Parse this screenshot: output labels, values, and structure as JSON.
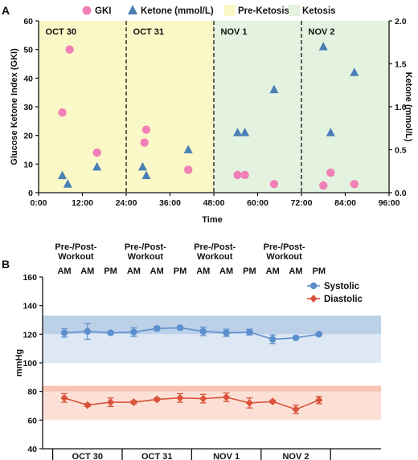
{
  "chart_data": [
    {
      "panel": "A",
      "type": "scatter",
      "legend": [
        {
          "key": "gki",
          "label": "GKI",
          "color": "#f180b6"
        },
        {
          "key": "ketone",
          "label": "Ketone (mmol/L)",
          "color": "#4a7fb5"
        },
        {
          "key": "preketosis",
          "label": "Pre-Ketosis",
          "color": "#fbf8c7"
        },
        {
          "key": "ketosis",
          "label": "Ketosis",
          "color": "#e3f3df"
        }
      ],
      "xlabel": "Time",
      "ylabel": "Glucose Ketone Index (GKI)",
      "y2label": "Ketone (mmol/L)",
      "xlim": [
        0,
        96
      ],
      "ylim": [
        0,
        60
      ],
      "y2lim": [
        0,
        2.0
      ],
      "xticks": [
        "0:00",
        "12:00",
        "24:00",
        "36:00",
        "48:00",
        "60:00",
        "72:00",
        "84:00",
        "96:00"
      ],
      "yticks": [
        "0",
        "10",
        "20",
        "30",
        "40",
        "50",
        "60"
      ],
      "y2ticks": [
        "0.0",
        "0.5",
        "1.0",
        "1.5",
        "2.0"
      ],
      "regions": [
        {
          "start": 0,
          "end": 48,
          "phase": "preketosis"
        },
        {
          "start": 48,
          "end": 96,
          "phase": "ketosis"
        }
      ],
      "day_dividers": [
        24,
        48,
        72
      ],
      "day_labels": [
        {
          "x": 1,
          "label": "OCT 30"
        },
        {
          "x": 25,
          "label": "OCT 31"
        },
        {
          "x": 49,
          "label": "NOV 1"
        },
        {
          "x": 73,
          "label": "NOV 2"
        }
      ],
      "series": [
        {
          "name": "GKI",
          "marker": "circle",
          "axis": "left",
          "points": [
            [
              6.5,
              28
            ],
            [
              8.5,
              50
            ],
            [
              16,
              14
            ],
            [
              29,
              17.5
            ],
            [
              29.5,
              22
            ],
            [
              41,
              8
            ],
            [
              54.5,
              6.2
            ],
            [
              56.5,
              6.2
            ],
            [
              64.5,
              3
            ],
            [
              78,
              2.5
            ],
            [
              80,
              7
            ],
            [
              86.5,
              3
            ]
          ]
        },
        {
          "name": "Ketone (mmol/L)",
          "marker": "triangle",
          "axis": "right",
          "points": [
            [
              6.5,
              0.2
            ],
            [
              8,
              0.1
            ],
            [
              16,
              0.3
            ],
            [
              28.5,
              0.3
            ],
            [
              29.5,
              0.2
            ],
            [
              41,
              0.5
            ],
            [
              54.5,
              0.7
            ],
            [
              56.5,
              0.7
            ],
            [
              64.5,
              1.2
            ],
            [
              78,
              1.7
            ],
            [
              80,
              0.7
            ],
            [
              86.5,
              1.4
            ]
          ]
        }
      ]
    },
    {
      "panel": "B",
      "type": "line",
      "ylabel": "mmHg",
      "ylim": [
        40,
        160
      ],
      "yticks": [
        "40",
        "60",
        "80",
        "100",
        "120",
        "140",
        "160"
      ],
      "top_labels": [
        "AM",
        "AM",
        "PM",
        "AM",
        "AM",
        "PM",
        "AM",
        "AM",
        "PM",
        "AM",
        "AM",
        "PM"
      ],
      "workout_label": "Pre-/Post-\nWorkout",
      "workout_groups": [
        [
          0,
          1
        ],
        [
          3,
          4
        ],
        [
          6,
          7
        ],
        [
          9,
          10
        ]
      ],
      "day_labels": [
        "OCT 30",
        "OCT 31",
        "NOV 1",
        "NOV 2"
      ],
      "bands": [
        {
          "from": 120,
          "to": 133,
          "color": "#bcd1e8"
        },
        {
          "from": 100,
          "to": 120,
          "color": "#dde8f4"
        },
        {
          "from": 80,
          "to": 84,
          "color": "#f7c4b0"
        },
        {
          "from": 60,
          "to": 80,
          "color": "#fce0d5"
        }
      ],
      "series": [
        {
          "name": "Systolic",
          "color": "#5b8fcc",
          "marker": "circle",
          "values": [
            121,
            122,
            121,
            121.5,
            124,
            124.5,
            122,
            121,
            121.5,
            116.5,
            117.5,
            120
          ],
          "errors": [
            3,
            5.5,
            1,
            3,
            1.5,
            1,
            3,
            2.5,
            2,
            3,
            1,
            1
          ]
        },
        {
          "name": "Diastolic",
          "color": "#d9533b",
          "marker": "diamond",
          "values": [
            75.5,
            70.5,
            72.5,
            72.5,
            74.5,
            75.5,
            75,
            76,
            72,
            73,
            67.5,
            74
          ],
          "errors": [
            3,
            1,
            3,
            1,
            1,
            3,
            3,
            3,
            3.5,
            1,
            3,
            2.5
          ]
        }
      ]
    }
  ]
}
